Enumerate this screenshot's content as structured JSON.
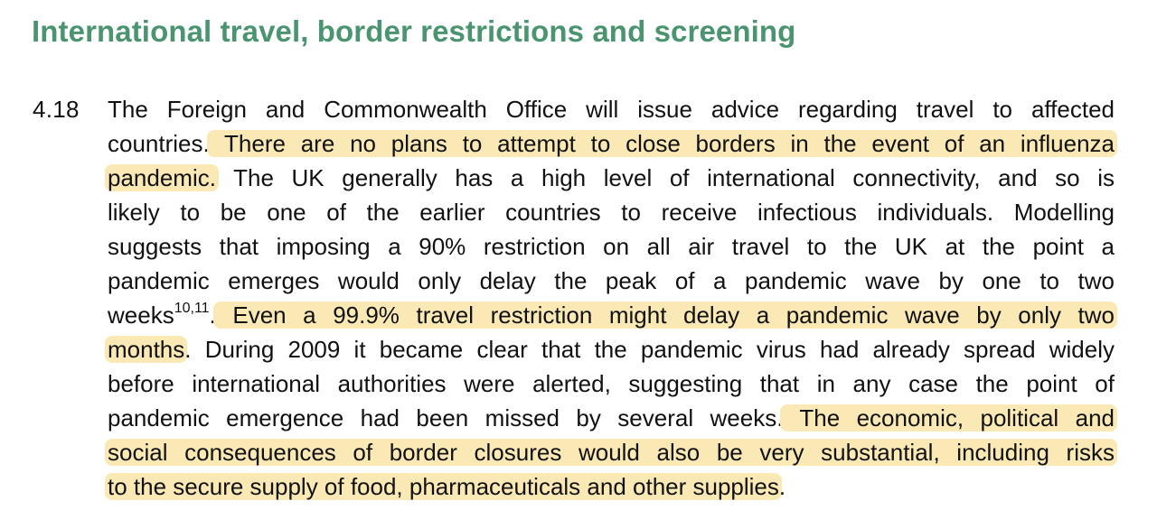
{
  "document": {
    "heading": "International travel, border restrictions and screening",
    "paragraph": {
      "number": "4.18",
      "lines": [
        {
          "segments": [
            {
              "text": "The Foreign and Commonwealth Office will issue advice regarding travel to affected",
              "highlight": false
            }
          ]
        },
        {
          "segments": [
            {
              "text": "countries.",
              "highlight": false
            },
            {
              "text": " There are no plans to attempt to close borders in the event of an influenza",
              "highlight": true
            }
          ]
        },
        {
          "segments": [
            {
              "text": "pandemic.",
              "highlight": true
            },
            {
              "text": " The UK generally has a high level of international connectivity, and so is",
              "highlight": false
            }
          ]
        },
        {
          "segments": [
            {
              "text": "likely to be one of the earlier countries to receive infectious individuals.  Modelling",
              "highlight": false
            }
          ]
        },
        {
          "segments": [
            {
              "text": "suggests that imposing a 90% restriction on all air travel to the UK at the point a",
              "highlight": false
            }
          ]
        },
        {
          "segments": [
            {
              "text": "pandemic emerges would only delay the peak of a pandemic wave by one to two",
              "highlight": false
            }
          ]
        },
        {
          "segments": [
            {
              "text": "weeks",
              "highlight": false
            },
            {
              "text": "10,11",
              "highlight": false,
              "superscript": true
            },
            {
              "text": ".",
              "highlight": false
            },
            {
              "text": " Even a 99.9% travel restriction might delay a pandemic wave by only two",
              "highlight": true
            }
          ]
        },
        {
          "segments": [
            {
              "text": "months",
              "highlight": true
            },
            {
              "text": ". During 2009 it became clear that the pandemic virus had already spread widely",
              "highlight": false
            }
          ]
        },
        {
          "segments": [
            {
              "text": "before international authorities were alerted, suggesting that in any case the point of",
              "highlight": false
            }
          ]
        },
        {
          "segments": [
            {
              "text": "pandemic emergence had been missed by several weeks.",
              "highlight": false
            },
            {
              "text": " The economic, political and",
              "highlight": true
            }
          ]
        },
        {
          "segments": [
            {
              "text": "social consequences of border closures would also be very substantial, including risks",
              "highlight": true
            }
          ]
        },
        {
          "segments": [
            {
              "text": "to the secure supply of food, pharmaceuticals and other supplies",
              "highlight": true
            },
            {
              "text": ".",
              "highlight": false
            }
          ]
        }
      ]
    }
  }
}
